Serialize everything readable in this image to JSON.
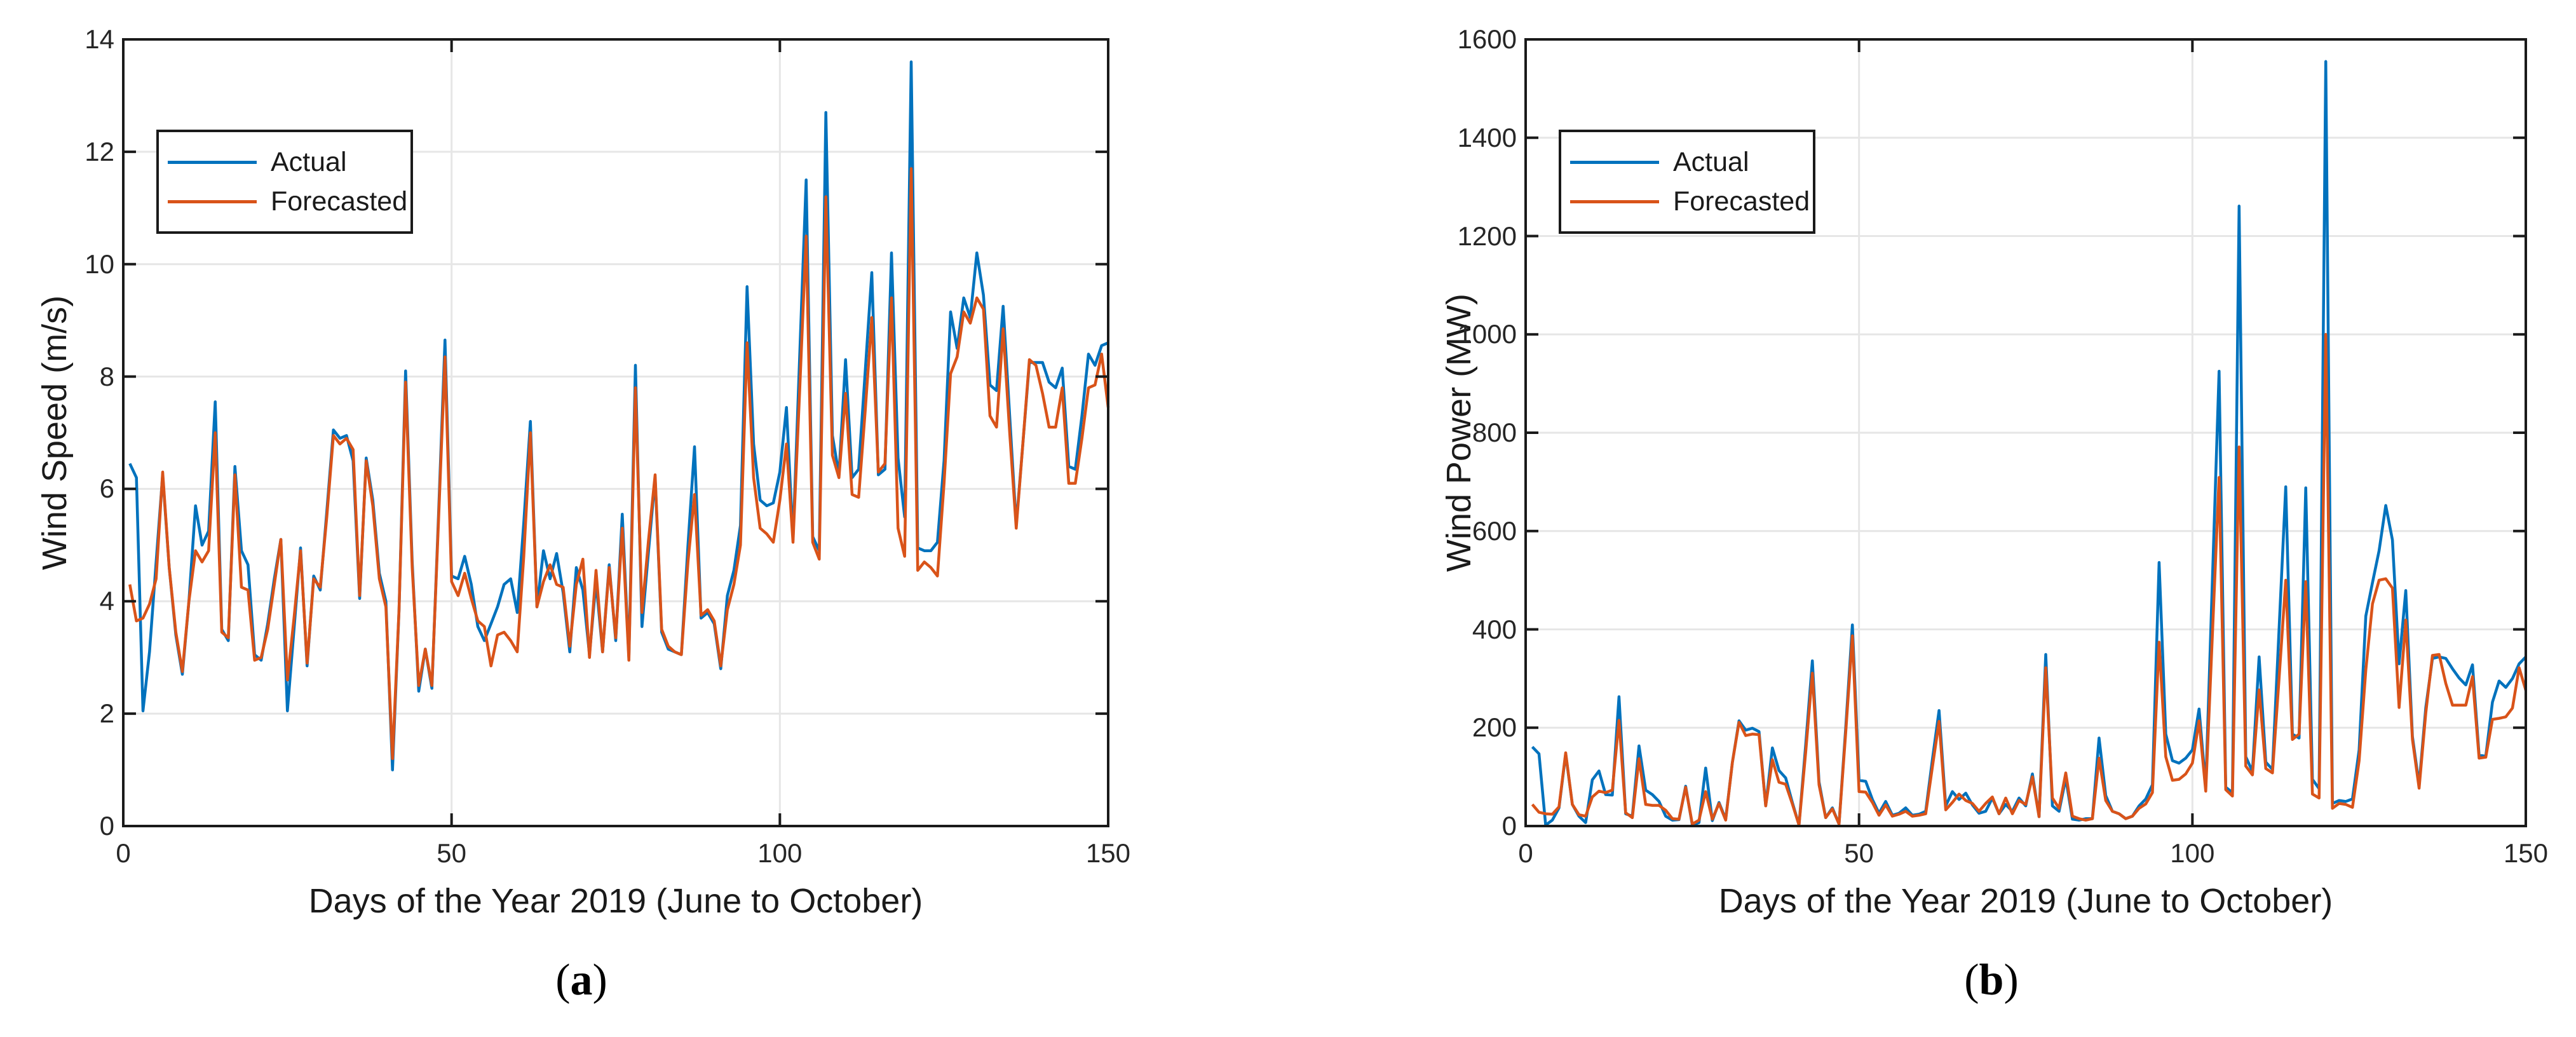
{
  "page": {
    "background": "#ffffff",
    "description_labels": {
      "actual": "Actual",
      "forecasted": "Forecasted"
    }
  },
  "chart_data": [
    {
      "type": "line",
      "id": "wind-speed",
      "caption_letter": "a",
      "xlabel": "Days of the Year 2019 (June to October)",
      "ylabel": "Wind Speed (m/s)",
      "xlim": [
        0,
        150
      ],
      "ylim": [
        0,
        14
      ],
      "xticks": [
        0,
        50,
        100,
        150
      ],
      "yticks": [
        0,
        2,
        4,
        6,
        8,
        10,
        12,
        14
      ],
      "grid": true,
      "legend_position": "top-left",
      "x_start": 1,
      "x_step": 1,
      "series": [
        {
          "name": "Actual",
          "color": "#0072BD",
          "values": [
            6.45,
            6.2,
            2.05,
            3.1,
            4.7,
            6.25,
            4.6,
            3.4,
            2.7,
            4.0,
            5.7,
            5.0,
            5.25,
            7.55,
            3.5,
            3.3,
            6.4,
            4.9,
            4.65,
            3.05,
            2.95,
            3.6,
            4.4,
            5.1,
            2.05,
            3.5,
            4.95,
            2.85,
            4.45,
            4.2,
            5.6,
            7.05,
            6.9,
            6.95,
            6.5,
            4.05,
            6.55,
            5.8,
            4.5,
            4.0,
            1.0,
            3.85,
            8.1,
            4.7,
            2.4,
            3.15,
            2.45,
            5.5,
            8.65,
            4.45,
            4.4,
            4.8,
            4.3,
            3.55,
            3.3,
            3.6,
            3.9,
            4.3,
            4.4,
            3.8,
            5.4,
            7.2,
            3.9,
            4.9,
            4.4,
            4.85,
            4.15,
            3.1,
            4.6,
            4.2,
            3.05,
            4.35,
            3.1,
            4.65,
            3.3,
            5.55,
            3.0,
            8.2,
            3.55,
            4.9,
            6.2,
            3.45,
            3.15,
            3.1,
            3.05,
            5.0,
            6.75,
            3.7,
            3.8,
            3.6,
            2.8,
            4.1,
            4.55,
            5.35,
            9.6,
            6.8,
            5.8,
            5.7,
            5.75,
            6.3,
            7.45,
            5.1,
            8.3,
            11.5,
            5.15,
            4.9,
            12.7,
            6.95,
            6.25,
            8.3,
            6.2,
            6.35,
            8.1,
            9.85,
            6.25,
            6.35,
            10.2,
            6.55,
            5.5,
            13.6,
            4.95,
            4.9,
            4.9,
            5.05,
            6.5,
            9.15,
            8.5,
            9.4,
            9.05,
            10.2,
            9.45,
            7.85,
            7.75,
            9.25,
            7.3,
            5.35,
            6.8,
            8.25,
            8.25,
            8.25,
            7.9,
            7.8,
            8.15,
            6.4,
            6.35,
            7.3,
            8.4,
            8.2,
            8.55,
            8.6
          ]
        },
        {
          "name": "Forecasted",
          "color": "#D95319",
          "values": [
            4.3,
            3.65,
            3.7,
            3.95,
            4.4,
            6.3,
            4.6,
            3.45,
            2.75,
            4.0,
            4.9,
            4.7,
            4.9,
            7.0,
            3.45,
            3.35,
            6.25,
            4.25,
            4.2,
            2.95,
            3.0,
            3.5,
            4.3,
            5.1,
            2.6,
            3.7,
            4.9,
            2.9,
            4.4,
            4.25,
            5.5,
            6.95,
            6.8,
            6.9,
            6.7,
            4.1,
            6.5,
            5.7,
            4.4,
            3.9,
            1.2,
            3.85,
            7.9,
            4.6,
            2.5,
            3.15,
            2.5,
            5.4,
            8.35,
            4.35,
            4.1,
            4.5,
            4.05,
            3.65,
            3.55,
            2.85,
            3.4,
            3.45,
            3.3,
            3.1,
            4.8,
            7.0,
            3.9,
            4.35,
            4.65,
            4.3,
            4.25,
            3.2,
            4.3,
            4.75,
            3.0,
            4.55,
            3.1,
            4.6,
            3.35,
            5.3,
            2.95,
            7.8,
            3.8,
            5.1,
            6.25,
            3.5,
            3.2,
            3.1,
            3.05,
            4.7,
            5.9,
            3.75,
            3.85,
            3.65,
            2.85,
            3.85,
            4.3,
            5.0,
            8.6,
            6.2,
            5.3,
            5.2,
            5.05,
            5.8,
            6.8,
            5.05,
            7.7,
            10.5,
            5.05,
            4.75,
            11.2,
            6.6,
            6.2,
            7.7,
            5.9,
            5.85,
            7.4,
            9.05,
            6.3,
            6.45,
            9.4,
            5.3,
            4.8,
            11.7,
            4.55,
            4.7,
            4.6,
            4.45,
            6.1,
            8.05,
            8.35,
            9.15,
            8.95,
            9.4,
            9.2,
            7.3,
            7.1,
            8.85,
            7.0,
            5.3,
            6.8,
            8.3,
            8.2,
            7.7,
            7.1,
            7.1,
            7.8,
            6.1,
            6.1,
            6.9,
            7.8,
            7.85,
            8.4,
            7.45
          ]
        }
      ]
    },
    {
      "type": "line",
      "id": "wind-power",
      "caption_letter": "b",
      "xlabel": "Days of the Year 2019 (June to October)",
      "ylabel": "Wind Power (MW)",
      "xlim": [
        0,
        150
      ],
      "ylim": [
        0,
        1600
      ],
      "xticks": [
        0,
        50,
        100,
        150
      ],
      "yticks": [
        0,
        200,
        400,
        600,
        800,
        1000,
        1200,
        1400,
        1600
      ],
      "grid": true,
      "legend_position": "top-left",
      "x_start": 1,
      "x_step": 1,
      "series": [
        {
          "name": "Actual",
          "color": "#0072BD",
          "values": [
            161,
            147,
            2,
            12,
            37,
            147,
            44,
            20,
            7,
            94,
            112,
            64,
            63,
            263,
            25,
            20,
            163,
            73,
            64,
            50,
            20,
            12,
            13,
            81,
            2,
            7,
            118,
            11,
            48,
            14,
            129,
            214,
            195,
            199,
            192,
            41,
            159,
            113,
            98,
            48,
            2,
            165,
            336,
            90,
            17,
            37,
            4,
            200,
            409,
            93,
            91,
            54,
            26,
            50,
            22,
            26,
            37,
            22,
            24,
            30,
            135,
            235,
            41,
            70,
            54,
            67,
            43,
            26,
            30,
            57,
            25,
            44,
            30,
            57,
            41,
            106,
            19,
            349,
            41,
            30,
            97,
            14,
            12,
            15,
            15,
            179,
            62,
            30,
            25,
            15,
            20,
            41,
            55,
            84,
            536,
            187,
            133,
            128,
            138,
            155,
            238,
            79,
            500,
            925,
            79,
            68,
            1261,
            141,
            111,
            344,
            130,
            115,
            400,
            690,
            187,
            179,
            688,
            95,
            76,
            1555,
            46,
            52,
            50,
            55,
            155,
            427,
            495,
            560,
            652,
            582,
            330,
            479,
            182,
            84,
            241,
            341,
            344,
            341,
            320,
            301,
            287,
            328,
            144,
            142,
            252,
            295,
            282,
            300,
            330,
            344
          ]
        },
        {
          "name": "Forecasted",
          "color": "#D95319",
          "values": [
            44,
            28,
            25,
            24,
            39,
            149,
            44,
            23,
            20,
            59,
            71,
            68,
            73,
            215,
            27,
            17,
            137,
            44,
            42,
            42,
            32,
            15,
            14,
            79,
            4,
            12,
            70,
            14,
            46,
            12,
            129,
            211,
            184,
            187,
            186,
            41,
            135,
            89,
            85,
            45,
            2,
            150,
            311,
            84,
            17,
            35,
            4,
            190,
            387,
            70,
            69,
            48,
            22,
            43,
            20,
            24,
            30,
            20,
            22,
            25,
            120,
            213,
            33,
            48,
            65,
            52,
            46,
            30,
            46,
            59,
            25,
            57,
            25,
            52,
            44,
            100,
            19,
            322,
            57,
            36,
            108,
            20,
            15,
            12,
            15,
            138,
            52,
            30,
            25,
            15,
            20,
            36,
            45,
            68,
            374,
            141,
            93,
            95,
            106,
            128,
            214,
            71,
            390,
            709,
            74,
            61,
            771,
            122,
            104,
            277,
            117,
            108,
            300,
            500,
            176,
            187,
            497,
            65,
            57,
            1000,
            36,
            46,
            44,
            38,
            133,
            317,
            452,
            500,
            503,
            484,
            241,
            419,
            176,
            77,
            230,
            347,
            349,
            290,
            246,
            246,
            246,
            304,
            138,
            140,
            217,
            219,
            222,
            240,
            322,
            276
          ]
        }
      ]
    }
  ]
}
